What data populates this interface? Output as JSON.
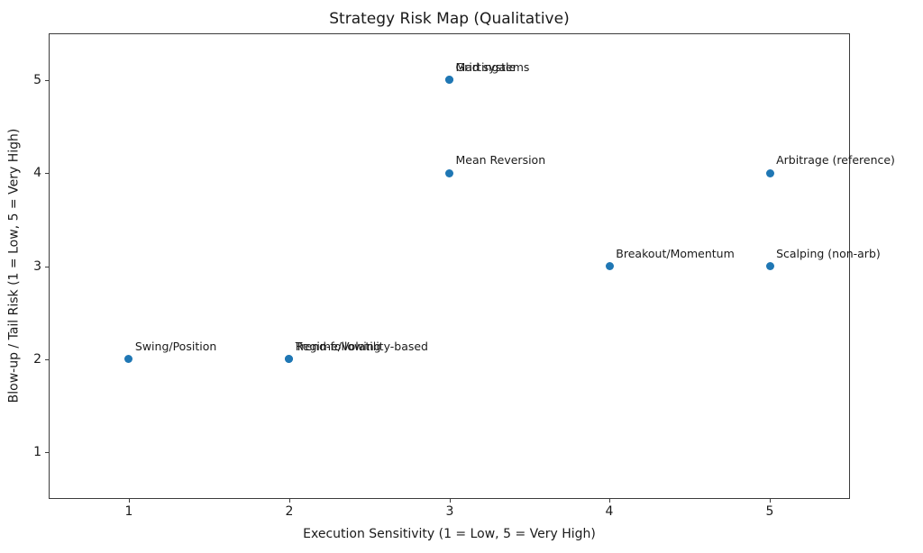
{
  "chart_data": {
    "type": "scatter",
    "title": "Strategy Risk Map (Qualitative)",
    "xlabel": "Execution Sensitivity (1 = Low, 5 = Very High)",
    "ylabel": "Blow-up / Tail Risk (1 = Low, 5 = Very High)",
    "xlim": [
      0.5,
      5.5
    ],
    "ylim": [
      0.5,
      5.5
    ],
    "xticks": [
      "1",
      "2",
      "3",
      "4",
      "5"
    ],
    "xtick_values": [
      1,
      2,
      3,
      4,
      5
    ],
    "yticks": [
      "1",
      "2",
      "3",
      "4",
      "5"
    ],
    "ytick_values": [
      1,
      2,
      3,
      4,
      5
    ],
    "grid": true,
    "legend": "none",
    "marker_color": "#1f77b4",
    "grid_color": "#d4d4d4",
    "spine_color": "#3c3c3c",
    "text_color": "#1a1a1a",
    "points": [
      {
        "label": "Swing/Position",
        "x": 1,
        "y": 2
      },
      {
        "label": "Trend-following",
        "x": 2,
        "y": 2
      },
      {
        "label": "Regime/Volatility-based",
        "x": 2,
        "y": 2
      },
      {
        "label": "Mean Reversion",
        "x": 3,
        "y": 4
      },
      {
        "label": "Grid systems",
        "x": 3,
        "y": 5
      },
      {
        "label": "Martingale",
        "x": 3,
        "y": 5
      },
      {
        "label": "Breakout/Momentum",
        "x": 4,
        "y": 3
      },
      {
        "label": "Scalping (non-arb)",
        "x": 5,
        "y": 3
      },
      {
        "label": "Arbitrage (reference)",
        "x": 5,
        "y": 4
      }
    ]
  }
}
